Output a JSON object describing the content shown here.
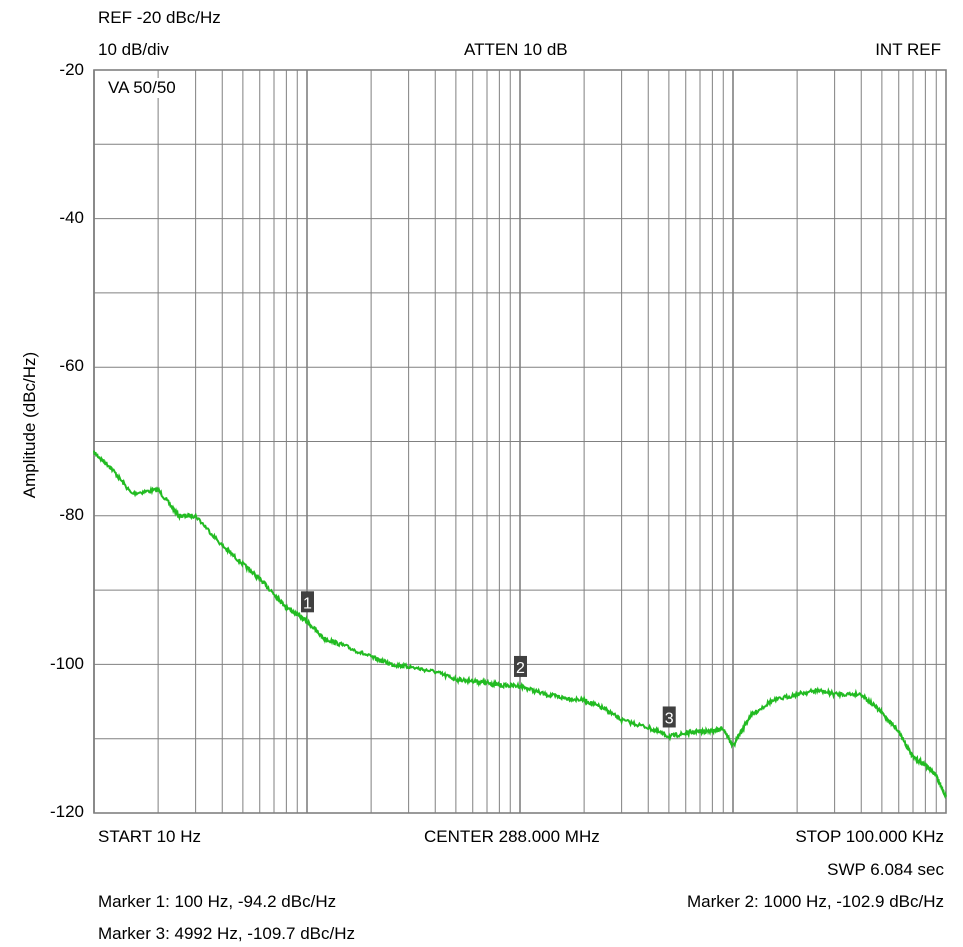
{
  "header": {
    "ref": "REF -20 dBc/Hz",
    "scale": "10 dB/div",
    "atten": "ATTEN 10 dB",
    "ref_source": "INT REF",
    "va": "VA 50/50"
  },
  "footer": {
    "start": "START 10 Hz",
    "center": "CENTER 288.000 MHz",
    "stop": "STOP 100.000 KHz",
    "sweep": "SWP 6.084 sec",
    "marker1": "Marker 1: 100 Hz, -94.2 dBc/Hz",
    "marker2": "Marker 2: 1000 Hz, -102.9 dBc/Hz",
    "marker3": "Marker 3: 4992 Hz, -109.7 dBc/Hz"
  },
  "colors": {
    "trace": "#22bb22",
    "grid": "#808080",
    "marker_bg": "#404040",
    "marker_fg": "#ffffff"
  },
  "chart_data": {
    "type": "line",
    "xscale": "log",
    "xlim": [
      10,
      100000
    ],
    "ylim": [
      -120,
      -20
    ],
    "ylabel": "Amplitude (dBc/Hz)",
    "yticks": [
      -20,
      -40,
      -60,
      -80,
      -100,
      -120
    ],
    "grid": true,
    "series": [
      {
        "x": [
          10,
          12,
          15,
          20,
          25,
          30,
          40,
          50,
          60,
          70,
          80,
          100,
          120,
          150,
          200,
          250,
          300,
          400,
          500,
          600,
          700,
          800,
          1000,
          1300,
          1600,
          2000,
          2500,
          3000,
          4000,
          5000,
          6000,
          7000,
          8000,
          9000,
          10000,
          12000,
          15000,
          20000,
          25000,
          30000,
          40000,
          50000,
          60000,
          70000,
          80000,
          90000,
          100000
        ],
        "y": [
          -71.5,
          -73.5,
          -77,
          -76.5,
          -80,
          -80,
          -84,
          -86.5,
          -88.5,
          -90.5,
          -92.3,
          -94.2,
          -96.5,
          -97.5,
          -99,
          -100,
          -100.3,
          -101,
          -102,
          -102.2,
          -102.5,
          -102.8,
          -102.9,
          -104,
          -104.5,
          -104.8,
          -106,
          -107.5,
          -108.5,
          -109.7,
          -109.3,
          -109,
          -109,
          -108.6,
          -111,
          -107,
          -105,
          -104,
          -103.5,
          -104,
          -104,
          -106.5,
          -109,
          -112.5,
          -113.5,
          -115,
          -117.8
        ]
      }
    ],
    "markers": [
      {
        "label": "1",
        "x": 100,
        "y": -94.2
      },
      {
        "label": "2",
        "x": 1000,
        "y": -102.9
      },
      {
        "label": "3",
        "x": 4992,
        "y": -109.7
      }
    ]
  }
}
